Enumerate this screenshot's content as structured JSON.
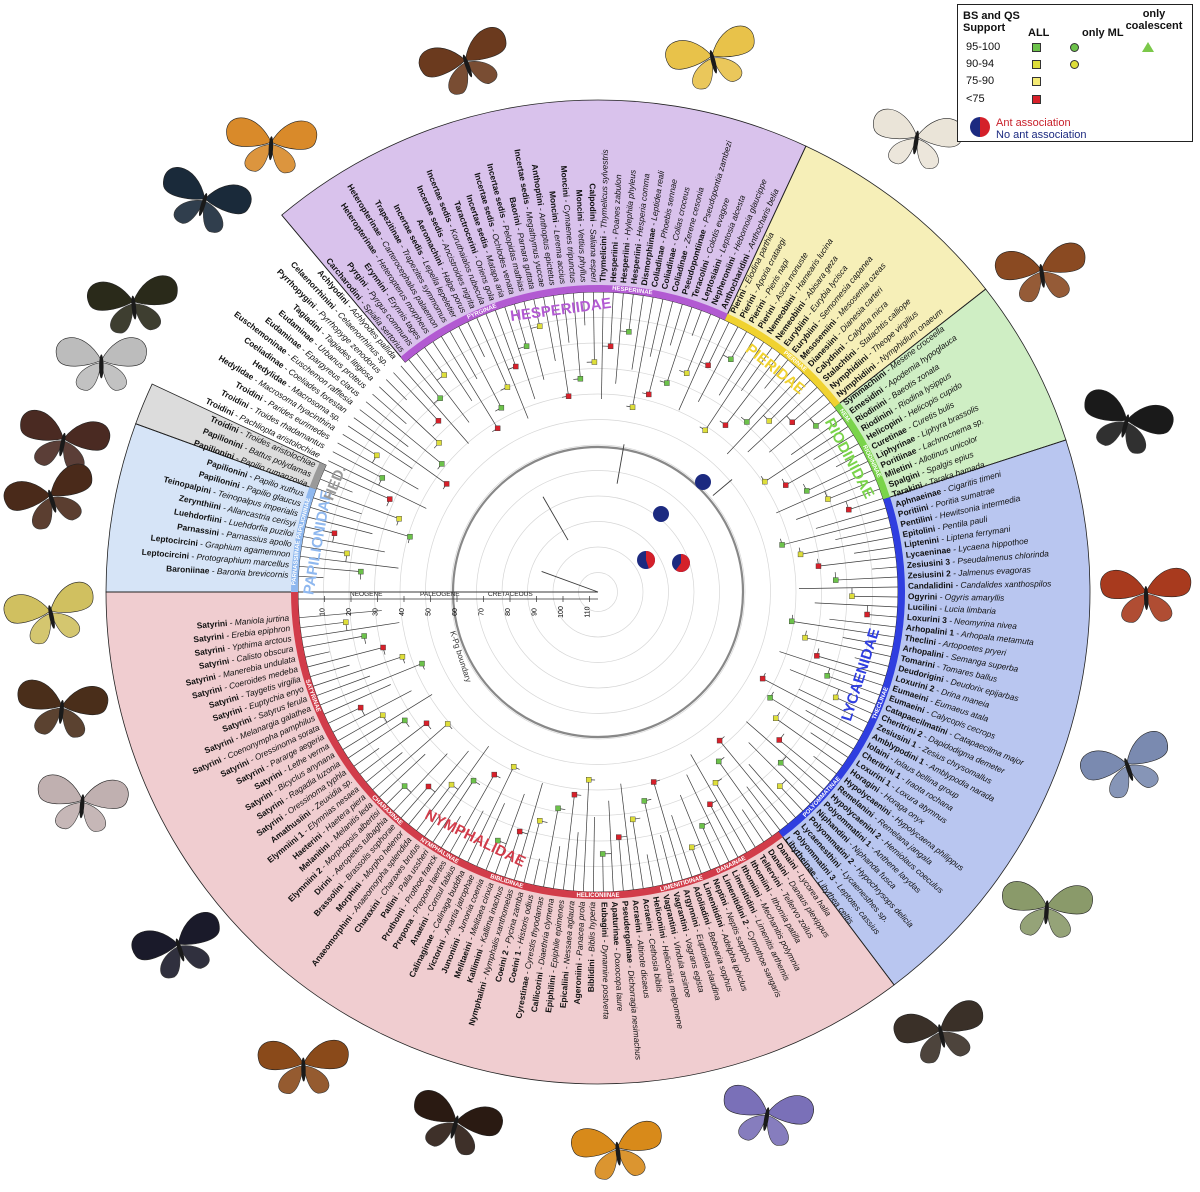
{
  "colors": {
    "hesperiidae": "#d9c2ec",
    "pieridae": "#f6efb8",
    "riodinidae": "#cfeec4",
    "lycaenidae": "#b9c6f0",
    "nymphalidae": "#f0cdd0",
    "papilionidae": "#d6e4f7",
    "hedylidae": "#dcdcdc",
    "support_high": "#6cc24a",
    "support_mid": "#dede3a",
    "support_low": "#f4ea74",
    "support_poor": "#d8202a",
    "ant_red": "#d4202a",
    "no_ant_blue": "#1c2a80"
  },
  "legend": {
    "title_line1": "BS and QS",
    "title_line2": "Support",
    "col_all": "ALL",
    "col_ml": "only ML",
    "col_coal_line1": "only",
    "col_coal_line2": "coalescent",
    "rows": [
      "95-100",
      "90-94",
      "75-90",
      "<75"
    ],
    "ant": "Ant association",
    "no_ant": "No ant association"
  },
  "timescale": {
    "period_labels": [
      "NEOGENE",
      "PALEOGENE",
      "CRETACEOUS"
    ],
    "ticks": [
      "10",
      "20",
      "30",
      "40",
      "50",
      "60",
      "70",
      "80",
      "90",
      "100",
      "110"
    ],
    "boundary_label": "K-Pg boundary"
  },
  "families": [
    {
      "name": "HESPERIIDAE",
      "key": "hesperiidae",
      "start": 230,
      "end": 295
    },
    {
      "name": "PIERIDAE",
      "key": "pieridae",
      "start": 295,
      "end": 322
    },
    {
      "name": "RIODINIDAE",
      "key": "riodinidae",
      "start": 322,
      "end": 342
    },
    {
      "name": "LYCAENIDAE",
      "key": "lycaenidae",
      "start": 342,
      "end": 413
    },
    {
      "name": "NYMPHALIDAE",
      "key": "nymphalidae",
      "start": 413,
      "end": 540
    },
    {
      "name": "PAPILIONIDAE",
      "key": "papilionidae",
      "start": 540,
      "end": 560
    },
    {
      "name": "HED.",
      "key": "hedylidae",
      "start": 560,
      "end": 565
    }
  ],
  "subfamilies": [
    {
      "name": "PAPILIONINAE",
      "start": 548,
      "end": 560
    },
    {
      "name": "PARNASSIINAE",
      "start": 543,
      "end": 548
    },
    {
      "name": "PYRGINAE",
      "start": 237,
      "end": 258
    },
    {
      "name": "HESPERIINAE",
      "start": 258,
      "end": 295
    },
    {
      "name": "PIERINAE",
      "start": 303,
      "end": 318
    },
    {
      "name": "NEM.",
      "start": 322,
      "end": 327
    },
    {
      "name": "RIODININAE",
      "start": 327,
      "end": 342
    },
    {
      "name": "POLYOMMATINAE",
      "start": 395,
      "end": 410
    },
    {
      "name": "THECLINAE",
      "start": 368,
      "end": 395
    },
    {
      "name": "NYMPHALINAE",
      "start": 475,
      "end": 488
    },
    {
      "name": "SATYRINAE",
      "start": 500,
      "end": 540
    },
    {
      "name": "CHARAXINAE",
      "start": 488,
      "end": 500
    },
    {
      "name": "BIBLIDINAE",
      "start": 460,
      "end": 475
    },
    {
      "name": "HELICONIINAE",
      "start": 440,
      "end": 460
    },
    {
      "name": "LIMENITIDINAE",
      "start": 428,
      "end": 440
    },
    {
      "name": "DANAINAE",
      "start": 420,
      "end": 428
    }
  ],
  "tips": [
    {
      "tribe": "Baroniinae",
      "species": "Baronia brevicornis"
    },
    {
      "tribe": "Leptocircini",
      "species": "Protographium marcellus"
    },
    {
      "tribe": "Leptocircini",
      "species": "Graphium agamemnon"
    },
    {
      "tribe": "Parnassini",
      "species": "Parnassius apollo"
    },
    {
      "tribe": "Luehdorfiini",
      "species": "Luehdorfia puziloi"
    },
    {
      "tribe": "Zerynthiini",
      "species": "Allancastria cerisyi"
    },
    {
      "tribe": "Teinopalpini",
      "species": "Teinopalpus imperialis"
    },
    {
      "tribe": "Papilionini",
      "species": "Papilio glaucus"
    },
    {
      "tribe": "Papilionini",
      "species": "Papilio xuthus"
    },
    {
      "tribe": "Papilionini",
      "species": "Papilio rumanzovia"
    },
    {
      "tribe": "Papilionini",
      "species": "Battus polydamas"
    },
    {
      "tribe": "Troidini",
      "species": "Troides aristolochiae"
    },
    {
      "tribe": "Troidini",
      "species": "Pachliopta aristolochiae"
    },
    {
      "tribe": "Troidini",
      "species": "Troides rhadamantus"
    },
    {
      "tribe": "Troidini",
      "species": "Parides eurimedes"
    },
    {
      "tribe": "Hedylidae",
      "species": "Macrosoma hyacinthina"
    },
    {
      "tribe": "Hedylidae",
      "species": "Macrosoma sp."
    },
    {
      "tribe": "Coeliadinae",
      "species": "Coeliades forestan"
    },
    {
      "tribe": "Euschemoninae",
      "species": "Euschemon rafflesia"
    },
    {
      "tribe": "Eudaminae",
      "species": "Epargyreus clarus"
    },
    {
      "tribe": "Eudaminae",
      "species": "Urbanus proteus"
    },
    {
      "tribe": "Tagiadini",
      "species": "Tagiades litigiosa"
    },
    {
      "tribe": "Pyrrhopygini",
      "species": "Pyrrhopyge zenodorus"
    },
    {
      "tribe": "Celaenorrhinini",
      "species": "Celaenorrhinus sp."
    },
    {
      "tribe": "Achlyodini",
      "species": "Achlyodes pallida"
    },
    {
      "tribe": "Carcharodini",
      "species": "Spialia sertorius"
    },
    {
      "tribe": "Pyrgini",
      "species": "Pyrgus communis"
    },
    {
      "tribe": "Erynnini",
      "species": "Erynnis tages"
    },
    {
      "tribe": "Heteropterinae",
      "species": "Heteropterus morpheus"
    },
    {
      "tribe": "Heteropterinae",
      "species": "Carterocephalus palaemon"
    },
    {
      "tribe": "Trapezitinae",
      "species": "Trapezites symmomus"
    },
    {
      "tribe": "Incertae sedis",
      "species": "Lepella lepeletier"
    },
    {
      "tribe": "Aeromachini",
      "species": "Halpe porus"
    },
    {
      "tribe": "Incertae sedis",
      "species": "Ancistroides nigrita"
    },
    {
      "tribe": "Incertae sedis",
      "species": "Koruthaialos rubecula"
    },
    {
      "tribe": "Taractrocerini",
      "species": "Oriens gola"
    },
    {
      "tribe": "Incertae sedis",
      "species": "Matapa aria"
    },
    {
      "tribe": "Incertae sedis",
      "species": "Ochlodes venata"
    },
    {
      "tribe": "Incertae sedis",
      "species": "Pelopidas mathias"
    },
    {
      "tribe": "Baorini",
      "species": "Parnara guttata"
    },
    {
      "tribe": "Incertae sedis",
      "species": "Megathymus yuccae"
    },
    {
      "tribe": "Anthoptini",
      "species": "Anthoptus epictetus"
    },
    {
      "tribe": "Moncini",
      "species": "Lerema accius"
    },
    {
      "tribe": "Moncini",
      "species": "Cymaenes tripunctus"
    },
    {
      "tribe": "Moncini",
      "species": "Vettius phyllus"
    },
    {
      "tribe": "Calpodini",
      "species": "Saliana esperi"
    },
    {
      "tribe": "Thymelicini",
      "species": "Thymelicus sylvestris"
    },
    {
      "tribe": "Hesperiini",
      "species": "Poanes zabulon"
    },
    {
      "tribe": "Hesperiini",
      "species": "Hylephila phyleus"
    },
    {
      "tribe": "Hesperiini",
      "species": "Hesperia comma"
    },
    {
      "tribe": "Dismorphiinae",
      "species": "Leptidea reali"
    },
    {
      "tribe": "Coliadinae",
      "species": "Phoebis sennae"
    },
    {
      "tribe": "Coliadinae",
      "species": "Colias croceus"
    },
    {
      "tribe": "Coliadinae",
      "species": "Zerene cesonia"
    },
    {
      "tribe": "Pseudopontiinae",
      "species": "Pseudopontia zambezi"
    },
    {
      "tribe": "Teracolini",
      "species": "Colotis evagore"
    },
    {
      "tribe": "Leptosiaini",
      "species": "Leptosia alcesta"
    },
    {
      "tribe": "Nepheroniini",
      "species": "Hebomoia glaucippe"
    },
    {
      "tribe": "Anthocharidini",
      "species": "Anthocharis belia"
    },
    {
      "tribe": "Pierini",
      "species": "Elodina parthia"
    },
    {
      "tribe": "Pierini",
      "species": "Aporia crataegi"
    },
    {
      "tribe": "Pierini",
      "species": "Pieris napi"
    },
    {
      "tribe": "Pierini",
      "species": "Ascia monuste"
    },
    {
      "tribe": "Nemeobiini",
      "species": "Hamearis lucina"
    },
    {
      "tribe": "Nemeobiini",
      "species": "Abisara geza"
    },
    {
      "tribe": "Eurybiini",
      "species": "Eurybia lycisca"
    },
    {
      "tribe": "Eurybiini",
      "species": "Semomesia capanea"
    },
    {
      "tribe": "Mesosemiini",
      "species": "Mesosemia ozeas"
    },
    {
      "tribe": "Dianesiini",
      "species": "Dianesia carteri"
    },
    {
      "tribe": "Calydnini",
      "species": "Calydna micra"
    },
    {
      "tribe": "Stalachtini",
      "species": "Stalachtis calliope"
    },
    {
      "tribe": "Nymphidiini",
      "species": "Theope virgilius"
    },
    {
      "tribe": "Nymphidiini",
      "species": "Nymphidium onaeum"
    },
    {
      "tribe": "Symmachiini",
      "species": "Mesene croceella"
    },
    {
      "tribe": "Emesidini",
      "species": "Apodemia hypoglauca"
    },
    {
      "tribe": "Riodinini",
      "species": "Baeotis zonata"
    },
    {
      "tribe": "Riodinini",
      "species": "Riodina lysippus"
    },
    {
      "tribe": "Helicopini",
      "species": "Helicopis cupido"
    },
    {
      "tribe": "Curetinae",
      "species": "Curetis bulis"
    },
    {
      "tribe": "Liphyrinae",
      "species": "Liphyra brassolis"
    },
    {
      "tribe": "Poritiinae",
      "species": "Lachnocnema sp."
    },
    {
      "tribe": "Miletini",
      "species": "Allotinus unicolor"
    },
    {
      "tribe": "Spalgini",
      "species": "Spalgis epius"
    },
    {
      "tribe": "Tarakini",
      "species": "Taraka hamada"
    },
    {
      "tribe": "Aphnaeinae",
      "species": "Cigaritis timeni"
    },
    {
      "tribe": "Poritiini",
      "species": "Poritia sumatrae"
    },
    {
      "tribe": "Pentilini",
      "species": "Hewitsonia intermedia"
    },
    {
      "tribe": "Epitolini",
      "species": "Pentila pauli"
    },
    {
      "tribe": "Liptenini",
      "species": "Liptena ferrymani"
    },
    {
      "tribe": "Lycaeninae",
      "species": "Lycaena hippothoe"
    },
    {
      "tribe": "Zesiusini 3",
      "species": "Pseudalmenus chlorinda"
    },
    {
      "tribe": "Zesiusini 2",
      "species": "Jalmenus evagoras"
    },
    {
      "tribe": "Candalidini",
      "species": "Candalides xanthospilos"
    },
    {
      "tribe": "Ogyrini",
      "species": "Ogyris amaryllis"
    },
    {
      "tribe": "Lucilini",
      "species": "Lucia limbaria"
    },
    {
      "tribe": "Loxurini 3",
      "species": "Neomyrina nivea"
    },
    {
      "tribe": "Arhopalini 1",
      "species": "Arhopala metamuta"
    },
    {
      "tribe": "Theclini",
      "species": "Artopoetes pryeri"
    },
    {
      "tribe": "Arhopalini",
      "species": "Semanga superba"
    },
    {
      "tribe": "Tomarini",
      "species": "Tomares ballus"
    },
    {
      "tribe": "Deudorigini",
      "species": "Deudorix epijarbas"
    },
    {
      "tribe": "Loxurini 2",
      "species": "Drina maneia"
    },
    {
      "tribe": "Eumaeini",
      "species": "Eumaeus atala"
    },
    {
      "tribe": "Eumaeini",
      "species": "Calycopis cecrops"
    },
    {
      "tribe": "Catapaecilmatini",
      "species": "Catapaecilma major"
    },
    {
      "tribe": "Cheritrini 2",
      "species": "Dapidodigma demeter"
    },
    {
      "tribe": "Zesiusini 1",
      "species": "Zesius chrysomallus"
    },
    {
      "tribe": "Amblypodini 1",
      "species": "Amblypodia narada"
    },
    {
      "tribe": "Iolaini",
      "species": "Iolaus bellina group"
    },
    {
      "tribe": "Cheritrini 1",
      "species": "Iraota rochana"
    },
    {
      "tribe": "Loxurini 1",
      "species": "Loxura atymnus"
    },
    {
      "tribe": "Horagini",
      "species": "Horaga onyx"
    },
    {
      "tribe": "Hypolycaenini",
      "species": "Hypolycaena philippus"
    },
    {
      "tribe": "Remelanini",
      "species": "Remelana jangala"
    },
    {
      "tribe": "Hypolycaenini 2",
      "species": "Hemiolaus coeculus"
    },
    {
      "tribe": "Polyommatini 1",
      "species": "Anthene larydas"
    },
    {
      "tribe": "Niphandini",
      "species": "Niphanda fusca"
    },
    {
      "tribe": "Polyommatini 2",
      "species": "Hypochrysops delicia"
    },
    {
      "tribe": "Lycaenesthini",
      "species": "Lycaenesthes sp."
    },
    {
      "tribe": "Polyommatini 3",
      "species": "Leptotes cassius"
    },
    {
      "tribe": "Libytheinae",
      "species": "Libythea celtis"
    },
    {
      "tribe": "Danaini",
      "species": "Lycorea halia"
    },
    {
      "tribe": "Danaini",
      "species": "Danaus plexippus"
    },
    {
      "tribe": "Tellervini",
      "species": "Tellervo zoilus"
    },
    {
      "tribe": "Ithomiini",
      "species": "Ithomia patilla"
    },
    {
      "tribe": "Ithomiini",
      "species": "Mechanitis polymnia"
    },
    {
      "tribe": "Limenitidini",
      "species": "Limenitis arthemis"
    },
    {
      "tribe": "Limenitidini 2",
      "species": "Cymothoe sangaris"
    },
    {
      "tribe": "Neptini",
      "species": "Neptis sappho"
    },
    {
      "tribe": "Limenitidini",
      "species": "Adelpha iphiclus"
    },
    {
      "tribe": "Adoliadini",
      "species": "Bebearia sophus"
    },
    {
      "tribe": "Argynnini",
      "species": "Euptoieta claudina"
    },
    {
      "tribe": "Vagrantini",
      "species": "Vagrans egista"
    },
    {
      "tribe": "Vagrantini",
      "species": "Vindula arsinoe"
    },
    {
      "tribe": "Heliconiini",
      "species": "Heliconius melpomene"
    },
    {
      "tribe": "Acraeini",
      "species": "Cethosia biblis"
    },
    {
      "tribe": "Acraeini",
      "species": "Altinote dicaeus"
    },
    {
      "tribe": "Pseudergolinae",
      "species": "Dichorragia nesimachus"
    },
    {
      "tribe": "Apaturinae",
      "species": "Doxocopa laure"
    },
    {
      "tribe": "Eubagini",
      "species": "Dynamine postverta"
    },
    {
      "tribe": "Biblidini",
      "species": "Biblis hyperia"
    },
    {
      "tribe": "Ageroniini",
      "species": "Panacea prola"
    },
    {
      "tribe": "Epicaliini",
      "species": "Nessaea aglaura"
    },
    {
      "tribe": "Epiphilini",
      "species": "Epiphile epimenes"
    },
    {
      "tribe": "Callicorini",
      "species": "Diaethria clymena"
    },
    {
      "tribe": "Cyrestinae",
      "species": "Cyrestis thyodamas"
    },
    {
      "tribe": "Coeini 1",
      "species": "Historis odius"
    },
    {
      "tribe": "Coeini 2",
      "species": "Pycina zamba"
    },
    {
      "tribe": "Nymphalini",
      "species": "Nymphalis xanthomelas"
    },
    {
      "tribe": "Kallimini",
      "species": "Kallima inachus"
    },
    {
      "tribe": "Melitaeini",
      "species": "Melitaea cinxia"
    },
    {
      "tribe": "Junoniini",
      "species": "Junonia coenia"
    },
    {
      "tribe": "Victorini",
      "species": "Anartia jatrophae"
    },
    {
      "tribe": "Calinaginae",
      "species": "Calinaga buddha"
    },
    {
      "tribe": "Anaeini",
      "species": "Consul fabius"
    },
    {
      "tribe": "Prepona",
      "species": "Prepona laertes"
    },
    {
      "tribe": "Prothoini",
      "species": "Prothoe franck"
    },
    {
      "tribe": "Pallini",
      "species": "Palla ussheri"
    },
    {
      "tribe": "Charaxini",
      "species": "Charaxes brutus"
    },
    {
      "tribe": "Anaeomorphini",
      "species": "Anaeomorpha splendida"
    },
    {
      "tribe": "Morphini",
      "species": "Morpho helenor"
    },
    {
      "tribe": "Brassolini",
      "species": "Brassolis sophorae"
    },
    {
      "tribe": "Dirini",
      "species": "Aeropetes tulbaghia"
    },
    {
      "tribe": "Elymniini 2",
      "species": "Morphopsis albertisi"
    },
    {
      "tribe": "Melanitini",
      "species": "Melanitis leda"
    },
    {
      "tribe": "Haeterini",
      "species": "Haetera piera"
    },
    {
      "tribe": "Elymniini 1",
      "species": "Elymnias nesaea"
    },
    {
      "tribe": "Amathusiini",
      "species": "Zeuxidia sp."
    },
    {
      "tribe": "Satyrini",
      "species": "Oressinoma typhla"
    },
    {
      "tribe": "Satyrini",
      "species": "Ragadia luzonia"
    },
    {
      "tribe": "Satyrini",
      "species": "Bicyclus anynana"
    },
    {
      "tribe": "Satyrini",
      "species": "Lethe verma"
    },
    {
      "tribe": "Satyrini",
      "species": "Pararge aegeria"
    },
    {
      "tribe": "Satyrini",
      "species": "Oressinoma sorata"
    },
    {
      "tribe": "Satyrini",
      "species": "Coenonympha pamphilus"
    },
    {
      "tribe": "Satyrini",
      "species": "Melanargia galathea"
    },
    {
      "tribe": "Satyrini",
      "species": "Satyrus ferula"
    },
    {
      "tribe": "Satyrini",
      "species": "Euptychia enyo"
    },
    {
      "tribe": "Satyrini",
      "species": "Taygetis virgilia"
    },
    {
      "tribe": "Satyrini",
      "species": "Coeroides medeba"
    },
    {
      "tribe": "Satyrini",
      "species": "Manerebia undulata"
    },
    {
      "tribe": "Satyrini",
      "species": "Calisto obscura"
    },
    {
      "tribe": "Satyrini",
      "species": "Ypthima arctous"
    },
    {
      "tribe": "Satyrini",
      "species": "Erebia epiphron"
    },
    {
      "tribe": "Satyrini",
      "species": "Maniola jurtina"
    }
  ]
}
